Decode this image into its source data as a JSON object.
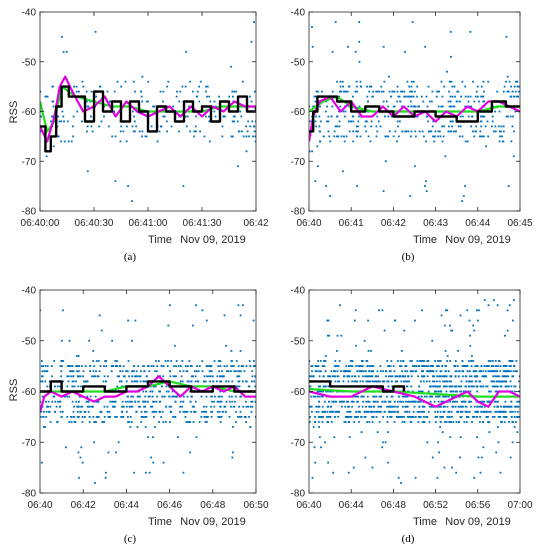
{
  "figure": {
    "y_axis_label": "RSS",
    "x_axis_label": "Time",
    "date_label": "Nov 09, 2019"
  },
  "colors": {
    "samples": "#0072BD",
    "green": "#22DD22",
    "magenta": "#E000E0",
    "black": "#000000",
    "axis": "#262626"
  },
  "chart_data": [
    {
      "panel": "(a)",
      "type": "line",
      "ylabel": "RSS",
      "xlabel": "Time",
      "date": "Nov 09, 2019",
      "ylim": [
        -80,
        -40
      ],
      "yticks": [
        -40,
        -50,
        -60,
        -70,
        -80
      ],
      "xticks": [
        "06:40:00",
        "06:40:30",
        "06:41:00",
        "06:41:30",
        "06:42"
      ],
      "xlim": [
        "06:40:00",
        "06:42:00"
      ],
      "grid": false,
      "series": [
        {
          "color": "black",
          "style": "step",
          "x": [
            "06:40:00",
            "06:40:03",
            "06:40:06",
            "06:40:09",
            "06:40:12",
            "06:40:16",
            "06:40:20",
            "06:40:25",
            "06:40:30",
            "06:40:35",
            "06:40:40",
            "06:40:45",
            "06:40:50",
            "06:40:55",
            "06:41:00",
            "06:41:05",
            "06:41:10",
            "06:41:15",
            "06:41:20",
            "06:41:25",
            "06:41:30",
            "06:41:35",
            "06:41:40",
            "06:41:45",
            "06:41:50",
            "06:41:55",
            "06:42:00"
          ],
          "values": [
            -63,
            -68,
            -65,
            -59,
            -55,
            -57,
            -57,
            -62,
            -56,
            -60,
            -58,
            -62,
            -58,
            -60,
            -64,
            -59,
            -60,
            -62,
            -58,
            -60,
            -59,
            -62,
            -58,
            -60,
            -57,
            -60,
            -59
          ]
        },
        {
          "color": "green",
          "x": [
            "06:40:00",
            "06:40:04",
            "06:40:08",
            "06:40:12",
            "06:40:16",
            "06:40:20",
            "06:40:30",
            "06:40:40",
            "06:40:50",
            "06:41:00",
            "06:41:10",
            "06:41:20",
            "06:41:30",
            "06:41:40",
            "06:41:50",
            "06:42:00"
          ],
          "values": [
            -58,
            -64,
            -62,
            -55,
            -56,
            -57,
            -58,
            -59,
            -59,
            -60,
            -60,
            -60,
            -60,
            -59,
            -59,
            -59
          ]
        },
        {
          "color": "magenta",
          "x": [
            "06:40:00",
            "06:40:04",
            "06:40:08",
            "06:40:11",
            "06:40:14",
            "06:40:18",
            "06:40:24",
            "06:40:30",
            "06:40:36",
            "06:40:42",
            "06:40:48",
            "06:40:54",
            "06:41:00",
            "06:41:06",
            "06:41:12",
            "06:41:18",
            "06:41:24",
            "06:41:30",
            "06:41:36",
            "06:41:42",
            "06:41:48",
            "06:41:54",
            "06:42:00"
          ],
          "values": [
            -63,
            -66,
            -61,
            -55,
            -53,
            -56,
            -60,
            -59,
            -57,
            -61,
            -58,
            -60,
            -61,
            -60,
            -59,
            -61,
            -59,
            -61,
            -59,
            -60,
            -58,
            -59,
            -59
          ]
        }
      ]
    },
    {
      "panel": "(b)",
      "type": "line",
      "xlabel": "Time",
      "date": "Nov 09, 2019",
      "ylim": [
        -80,
        -40
      ],
      "yticks": [
        -40,
        -50,
        -60,
        -70,
        -80
      ],
      "xticks": [
        "06:40",
        "06:41",
        "06:42",
        "06:43",
        "06:44",
        "06:45"
      ],
      "xlim": [
        "06:40:00",
        "06:45:00"
      ],
      "grid": false,
      "series": [
        {
          "color": "black",
          "style": "step",
          "x": [
            "06:40:00",
            "06:40:06",
            "06:40:12",
            "06:40:40",
            "06:41:00",
            "06:41:20",
            "06:41:40",
            "06:42:00",
            "06:42:30",
            "06:43:00",
            "06:43:30",
            "06:44:00",
            "06:44:20",
            "06:44:40",
            "06:45:00"
          ],
          "values": [
            -64,
            -60,
            -57,
            -58,
            -60,
            -59,
            -60,
            -61,
            -60,
            -61,
            -62,
            -60,
            -58,
            -59,
            -59
          ]
        },
        {
          "color": "green",
          "x": [
            "06:40:00",
            "06:40:20",
            "06:40:40",
            "06:41:00",
            "06:41:30",
            "06:42:00",
            "06:42:30",
            "06:43:00",
            "06:43:30",
            "06:44:00",
            "06:44:30",
            "06:45:00"
          ],
          "values": [
            -60,
            -58,
            -57,
            -59,
            -60,
            -60,
            -60,
            -60,
            -60,
            -60,
            -59,
            -59
          ]
        },
        {
          "color": "magenta",
          "x": [
            "06:40:00",
            "06:40:06",
            "06:40:15",
            "06:40:30",
            "06:40:45",
            "06:41:00",
            "06:41:15",
            "06:41:30",
            "06:41:45",
            "06:42:00",
            "06:42:15",
            "06:42:30",
            "06:42:45",
            "06:43:00",
            "06:43:15",
            "06:43:30",
            "06:43:45",
            "06:44:00",
            "06:44:15",
            "06:44:30",
            "06:44:45",
            "06:45:00"
          ],
          "values": [
            -66,
            -61,
            -58,
            -57,
            -60,
            -58,
            -61,
            -61,
            -59,
            -61,
            -59,
            -61,
            -60,
            -62,
            -60,
            -61,
            -59,
            -60,
            -58,
            -58,
            -59,
            -60
          ]
        }
      ]
    },
    {
      "panel": "(c)",
      "type": "line",
      "ylabel": "RSS",
      "xlabel": "Time",
      "date": "Nov 09, 2019",
      "ylim": [
        -80,
        -40
      ],
      "yticks": [
        -40,
        -50,
        -60,
        -70,
        -80
      ],
      "xticks": [
        "06:40",
        "06:42",
        "06:44",
        "06:46",
        "06:48",
        "06:50"
      ],
      "xlim": [
        "06:40:00",
        "06:50:00"
      ],
      "grid": false,
      "series": [
        {
          "color": "black",
          "style": "step",
          "x": [
            "06:40:00",
            "06:40:30",
            "06:41:00",
            "06:42:00",
            "06:43:00",
            "06:44:00",
            "06:45:00",
            "06:46:00",
            "06:47:00",
            "06:48:00",
            "06:49:00",
            "06:50:00"
          ],
          "values": [
            -60,
            -58,
            -60,
            -59,
            -60,
            -59,
            -58,
            -59,
            -60,
            -59,
            -60,
            -60
          ]
        },
        {
          "color": "green",
          "x": [
            "06:40:00",
            "06:41:00",
            "06:42:00",
            "06:43:00",
            "06:44:00",
            "06:45:00",
            "06:46:00",
            "06:47:00",
            "06:48:00",
            "06:49:00",
            "06:50:00"
          ],
          "values": [
            -60,
            -60,
            -60,
            -60,
            -59,
            -59,
            -58,
            -59,
            -59,
            -60,
            -60
          ]
        },
        {
          "color": "magenta",
          "x": [
            "06:40:00",
            "06:40:12",
            "06:40:30",
            "06:41:00",
            "06:41:30",
            "06:42:00",
            "06:42:30",
            "06:43:00",
            "06:43:30",
            "06:44:00",
            "06:44:30",
            "06:45:00",
            "06:45:30",
            "06:46:00",
            "06:46:30",
            "06:47:00",
            "06:47:30",
            "06:48:00",
            "06:48:30",
            "06:49:00",
            "06:49:30",
            "06:50:00"
          ],
          "values": [
            -64,
            -61,
            -60,
            -61,
            -60,
            -61,
            -62,
            -61,
            -61,
            -60,
            -60,
            -59,
            -57,
            -59,
            -61,
            -59,
            -60,
            -59,
            -60,
            -59,
            -61,
            -61
          ]
        }
      ]
    },
    {
      "panel": "(d)",
      "type": "line",
      "xlabel": "Time",
      "date": "Nov 09, 2019",
      "ylim": [
        -80,
        -40
      ],
      "yticks": [
        -40,
        -50,
        -60,
        -70,
        -80
      ],
      "xticks": [
        "06:40",
        "06:44",
        "06:48",
        "06:52",
        "06:56",
        "07:00"
      ],
      "xlim": [
        "06:40:00",
        "07:00:00"
      ],
      "grid": false,
      "series": [
        {
          "color": "black",
          "style": "step",
          "x": [
            "06:40:00",
            "06:42:00",
            "06:44:00",
            "06:46:00",
            "06:47:00",
            "06:48:00",
            "06:49:00"
          ],
          "values": [
            -58,
            -59,
            -59,
            -59,
            -60,
            -59,
            -60
          ]
        },
        {
          "color": "green",
          "x": [
            "06:40:00",
            "06:44:00",
            "06:48:00",
            "06:52:00",
            "06:56:00",
            "07:00:00"
          ],
          "values": [
            -59.5,
            -60,
            -60,
            -60.5,
            -61,
            -61
          ]
        },
        {
          "color": "magenta",
          "x": [
            "06:40:00",
            "06:42:00",
            "06:44:00",
            "06:46:00",
            "06:48:00",
            "06:50:00",
            "06:52:00",
            "06:53:00",
            "06:55:00",
            "06:56:00",
            "06:57:00",
            "06:58:00",
            "06:59:00",
            "07:00:00"
          ],
          "values": [
            -60,
            -61,
            -61,
            -59,
            -60,
            -61,
            -63,
            -62,
            -60,
            -62,
            -63,
            -60,
            -60,
            -61
          ]
        }
      ]
    }
  ]
}
